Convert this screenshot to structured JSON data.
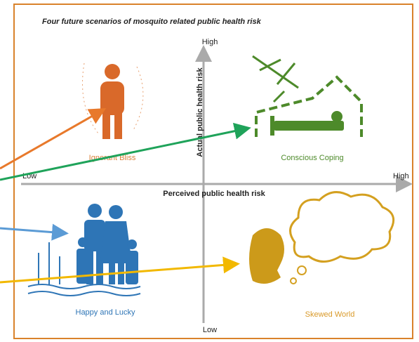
{
  "title": "Four future scenarios of mosquito related public health risk",
  "axes": {
    "vertical": {
      "label": "Actual public health risk",
      "top": "High",
      "bottom": "Low"
    },
    "horizontal": {
      "label": "Perceived public health risk",
      "left": "Low",
      "right": "High"
    }
  },
  "quadrants": [
    {
      "label": "Ignorant Bliss"
    },
    {
      "label": "Conscious Coping"
    },
    {
      "label": "Happy and Lucky"
    },
    {
      "label": "Skewed World"
    }
  ]
}
